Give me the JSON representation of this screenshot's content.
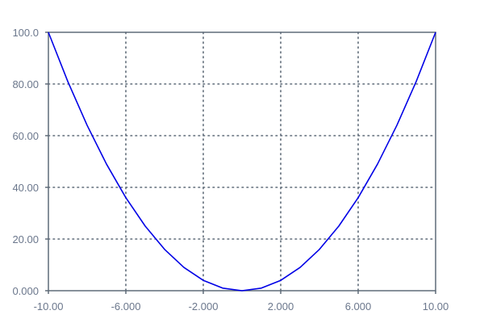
{
  "chart_data": {
    "type": "line",
    "title": "",
    "xlabel": "",
    "ylabel": "",
    "xlim": [
      -10,
      10
    ],
    "ylim": [
      0,
      100
    ],
    "grid": true,
    "x_ticks": [
      -10,
      -6,
      -2,
      2,
      6,
      10
    ],
    "x_tick_labels": [
      "-10.00",
      "-6.000",
      "-2.000",
      "2.000",
      "6.000",
      "10.00"
    ],
    "x_grid": [
      -6,
      -2,
      2,
      6
    ],
    "y_ticks": [
      0,
      20,
      40,
      60,
      80,
      100
    ],
    "y_tick_labels": [
      "0.000",
      "20.00",
      "40.00",
      "60.00",
      "80.00",
      "100.0"
    ],
    "y_grid": [
      20,
      40,
      60,
      80
    ],
    "line_color": "#0000e6",
    "axis_color": "#5f6b78",
    "label_color": "#6b778c",
    "series": [
      {
        "x": [
          -10,
          -9,
          -8,
          -7,
          -6,
          -5,
          -4,
          -3,
          -2,
          -1,
          0,
          1,
          2,
          3,
          4,
          5,
          6,
          7,
          8,
          9,
          10
        ],
        "y": [
          100,
          81,
          64,
          49,
          36,
          25,
          16,
          9,
          4,
          1,
          0,
          1,
          4,
          9,
          16,
          25,
          36,
          49,
          64,
          81,
          100
        ]
      }
    ]
  }
}
